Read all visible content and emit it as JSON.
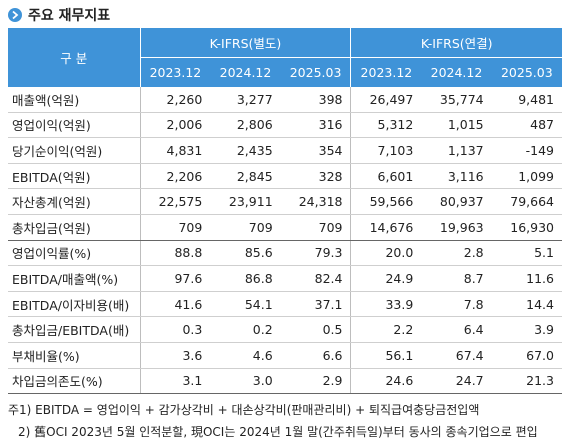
{
  "header": {
    "title": "주요 재무지표"
  },
  "table": {
    "corner": "구 분",
    "groups": [
      "K-IFRS(별도)",
      "K-IFRS(연결)"
    ],
    "periods": [
      "2023.12",
      "2024.12",
      "2025.03",
      "2023.12",
      "2024.12",
      "2025.03"
    ],
    "rows": [
      [
        "매출액(억원)",
        "2,260",
        "3,277",
        "398",
        "26,497",
        "35,774",
        "9,481"
      ],
      [
        "영업이익(억원)",
        "2,006",
        "2,806",
        "316",
        "5,312",
        "1,015",
        "487"
      ],
      [
        "당기순이익(억원)",
        "4,831",
        "2,435",
        "354",
        "7,103",
        "1,137",
        "-149"
      ],
      [
        "EBITDA(억원)",
        "2,206",
        "2,845",
        "328",
        "6,601",
        "3,116",
        "1,099"
      ],
      [
        "자산총계(억원)",
        "22,575",
        "23,911",
        "24,318",
        "59,566",
        "80,937",
        "79,664"
      ],
      [
        "총차입금(억원)",
        "709",
        "709",
        "709",
        "14,676",
        "19,963",
        "16,930"
      ],
      [
        "영업이익률(%)",
        "88.8",
        "85.6",
        "79.3",
        "20.0",
        "2.8",
        "5.1"
      ],
      [
        "EBITDA/매출액(%)",
        "97.6",
        "86.8",
        "82.4",
        "24.9",
        "8.7",
        "11.6"
      ],
      [
        "EBITDA/이자비용(배)",
        "41.6",
        "54.1",
        "37.1",
        "33.9",
        "7.8",
        "14.4"
      ],
      [
        "총차입금/EBITDA(배)",
        "0.3",
        "0.2",
        "0.5",
        "2.2",
        "6.4",
        "3.9"
      ],
      [
        "부채비율(%)",
        "3.6",
        "4.6",
        "6.6",
        "56.1",
        "67.4",
        "67.0"
      ],
      [
        "차입금의존도(%)",
        "3.1",
        "3.0",
        "2.9",
        "24.6",
        "24.7",
        "21.3"
      ]
    ]
  },
  "notes": [
    "주1) EBITDA = 영업이익 + 감가상각비 + 대손상각비(판매관리비) + 퇴직급여충당금전입액",
    "2) 舊OCI 2023년 5월 인적분할, 現OCI는 2024년 1월 말(간주취득일)부터 동사의 종속기업으로 편입"
  ]
}
